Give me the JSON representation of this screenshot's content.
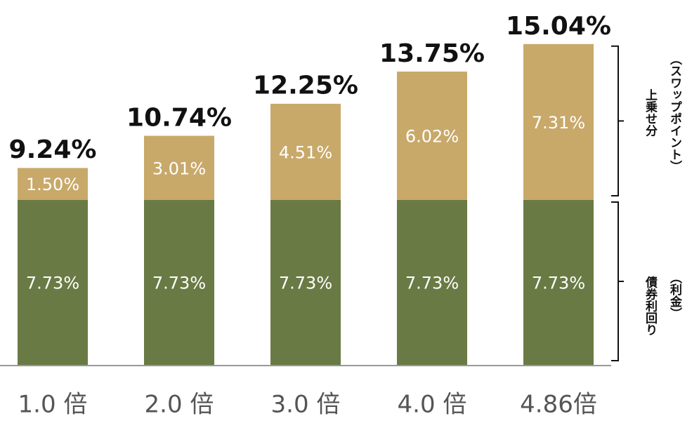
{
  "chart_data": {
    "type": "stacked_bar",
    "categories": [
      "1.0 倍",
      "2.0 倍",
      "3.0 倍",
      "4.0 倍",
      "4.86倍"
    ],
    "series": [
      {
        "name": "債券利回り",
        "color": "#6a7a45",
        "values": [
          7.73,
          7.73,
          7.73,
          7.73,
          7.73
        ],
        "value_labels": [
          "7.73%",
          "7.73%",
          "7.73%",
          "7.73%",
          "7.73%"
        ]
      },
      {
        "name": "上乗せ分",
        "color": "#c8a96a",
        "values": [
          1.5,
          3.01,
          4.51,
          6.02,
          7.31
        ],
        "value_labels": [
          "1.50%",
          "3.01%",
          "4.51%",
          "6.02%",
          "7.31%"
        ]
      }
    ],
    "totals": {
      "values": [
        9.24,
        10.74,
        12.25,
        13.75,
        15.04
      ],
      "value_labels": [
        "9.24%",
        "10.74%",
        "12.25%",
        "13.75%",
        "15.04%"
      ]
    },
    "annotations": [
      "（利金）",
      "（スワップポイント）"
    ],
    "ylim": [
      0,
      17
    ]
  }
}
